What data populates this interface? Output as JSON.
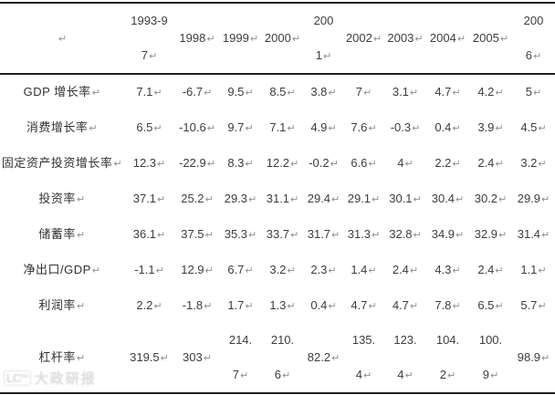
{
  "document": {
    "background": "#ffffff",
    "text_color": "#3d3d3d",
    "border_color": "#1f1f1f",
    "return_mark": "↵",
    "return_mark_color": "#8f8f8f"
  },
  "table": {
    "description": "Chinese macroeconomic indicators by period",
    "columns": [
      "",
      "1993-97",
      "1998",
      "1999",
      "2000",
      "2001",
      "2002",
      "2003",
      "2004",
      "2005",
      "2006"
    ],
    "header": [
      {
        "lines": [
          {
            "t": "",
            "m": true
          }
        ]
      },
      {
        "lines": [
          {
            "t": "1993-9",
            "m": false
          },
          {
            "t": "7",
            "m": true
          }
        ]
      },
      {
        "lines": [
          {
            "t": "1998",
            "m": true
          }
        ]
      },
      {
        "lines": [
          {
            "t": "1999",
            "m": true
          }
        ]
      },
      {
        "lines": [
          {
            "t": "2000",
            "m": true
          }
        ]
      },
      {
        "lines": [
          {
            "t": "200",
            "m": false
          },
          {
            "t": "1",
            "m": true
          }
        ]
      },
      {
        "lines": [
          {
            "t": "2002",
            "m": true
          }
        ]
      },
      {
        "lines": [
          {
            "t": "2003",
            "m": true
          }
        ]
      },
      {
        "lines": [
          {
            "t": "2004",
            "m": true
          }
        ]
      },
      {
        "lines": [
          {
            "t": "2005",
            "m": true
          }
        ]
      },
      {
        "lines": [
          {
            "t": "200",
            "m": false
          },
          {
            "t": "6",
            "m": true
          }
        ]
      }
    ],
    "rows": [
      {
        "name": "gdp-growth-rate",
        "values": [
          7.1,
          -6.7,
          9.5,
          8.5,
          3.8,
          7,
          3.1,
          4.7,
          4.2,
          5
        ],
        "cells": [
          {
            "lines": [
              {
                "t": "GDP 增长率",
                "m": true
              }
            ]
          },
          {
            "lines": [
              {
                "t": "7.1",
                "m": true
              }
            ]
          },
          {
            "lines": [
              {
                "t": "-6.7",
                "m": true
              }
            ]
          },
          {
            "lines": [
              {
                "t": "9.5",
                "m": true
              }
            ]
          },
          {
            "lines": [
              {
                "t": "8.5",
                "m": true
              }
            ]
          },
          {
            "lines": [
              {
                "t": "3.8",
                "m": true
              }
            ]
          },
          {
            "lines": [
              {
                "t": "7",
                "m": true
              }
            ]
          },
          {
            "lines": [
              {
                "t": "3.1",
                "m": true
              }
            ]
          },
          {
            "lines": [
              {
                "t": "4.7",
                "m": true
              }
            ]
          },
          {
            "lines": [
              {
                "t": "4.2",
                "m": true
              }
            ]
          },
          {
            "lines": [
              {
                "t": "5",
                "m": true
              }
            ]
          }
        ]
      },
      {
        "name": "consumption-growth-rate",
        "values": [
          6.5,
          -10.6,
          9.7,
          7.1,
          4.9,
          7.6,
          -0.3,
          0.4,
          3.9,
          4.5
        ],
        "cells": [
          {
            "lines": [
              {
                "t": "消费增长率",
                "m": true
              }
            ]
          },
          {
            "lines": [
              {
                "t": "6.5",
                "m": true
              }
            ]
          },
          {
            "lines": [
              {
                "t": "-10.6",
                "m": true
              }
            ]
          },
          {
            "lines": [
              {
                "t": "9.7",
                "m": true
              }
            ]
          },
          {
            "lines": [
              {
                "t": "7.1",
                "m": true
              }
            ]
          },
          {
            "lines": [
              {
                "t": "4.9",
                "m": true
              }
            ]
          },
          {
            "lines": [
              {
                "t": "7.6",
                "m": true
              }
            ]
          },
          {
            "lines": [
              {
                "t": "-0.3",
                "m": true
              }
            ]
          },
          {
            "lines": [
              {
                "t": "0.4",
                "m": true
              }
            ]
          },
          {
            "lines": [
              {
                "t": "3.9",
                "m": true
              }
            ]
          },
          {
            "lines": [
              {
                "t": "4.5",
                "m": true
              }
            ]
          }
        ]
      },
      {
        "name": "fixed-asset-investment-growth-rate",
        "values": [
          12.3,
          -22.9,
          8.3,
          12.2,
          -0.2,
          6.6,
          4,
          2.2,
          2.4,
          3.2
        ],
        "cells": [
          {
            "lines": [
              {
                "t": "固定资产投资增长率",
                "m": true
              }
            ]
          },
          {
            "lines": [
              {
                "t": "12.3",
                "m": true
              }
            ]
          },
          {
            "lines": [
              {
                "t": "-22.9",
                "m": true
              }
            ]
          },
          {
            "lines": [
              {
                "t": "8.3",
                "m": true
              }
            ]
          },
          {
            "lines": [
              {
                "t": "12.2",
                "m": true
              }
            ]
          },
          {
            "lines": [
              {
                "t": "-0.2",
                "m": true
              }
            ]
          },
          {
            "lines": [
              {
                "t": "6.6",
                "m": true
              }
            ]
          },
          {
            "lines": [
              {
                "t": "4",
                "m": true
              }
            ]
          },
          {
            "lines": [
              {
                "t": "2.2",
                "m": true
              }
            ]
          },
          {
            "lines": [
              {
                "t": "2.4",
                "m": true
              }
            ]
          },
          {
            "lines": [
              {
                "t": "3.2",
                "m": true
              }
            ]
          }
        ]
      },
      {
        "name": "investment-rate",
        "values": [
          37.1,
          25.2,
          29.3,
          31.1,
          29.4,
          29.1,
          30.1,
          30.4,
          30.2,
          29.9
        ],
        "cells": [
          {
            "lines": [
              {
                "t": "投资率",
                "m": true
              }
            ]
          },
          {
            "lines": [
              {
                "t": "37.1",
                "m": true
              }
            ]
          },
          {
            "lines": [
              {
                "t": "25.2",
                "m": true
              }
            ]
          },
          {
            "lines": [
              {
                "t": "29.3",
                "m": true
              }
            ]
          },
          {
            "lines": [
              {
                "t": "31.1",
                "m": true
              }
            ]
          },
          {
            "lines": [
              {
                "t": "29.4",
                "m": true
              }
            ]
          },
          {
            "lines": [
              {
                "t": "29.1",
                "m": true
              }
            ]
          },
          {
            "lines": [
              {
                "t": "30.1",
                "m": true
              }
            ]
          },
          {
            "lines": [
              {
                "t": "30.4",
                "m": true
              }
            ]
          },
          {
            "lines": [
              {
                "t": "30.2",
                "m": true
              }
            ]
          },
          {
            "lines": [
              {
                "t": "29.9",
                "m": true
              }
            ]
          }
        ]
      },
      {
        "name": "savings-rate",
        "values": [
          36.1,
          37.5,
          35.3,
          33.7,
          31.7,
          31.3,
          32.8,
          34.9,
          32.9,
          31.4
        ],
        "cells": [
          {
            "lines": [
              {
                "t": "储蓄率",
                "m": true
              }
            ]
          },
          {
            "lines": [
              {
                "t": "36.1",
                "m": true
              }
            ]
          },
          {
            "lines": [
              {
                "t": "37.5",
                "m": true
              }
            ]
          },
          {
            "lines": [
              {
                "t": "35.3",
                "m": true
              }
            ]
          },
          {
            "lines": [
              {
                "t": "33.7",
                "m": true
              }
            ]
          },
          {
            "lines": [
              {
                "t": "31.7",
                "m": true
              }
            ]
          },
          {
            "lines": [
              {
                "t": "31.3",
                "m": true
              }
            ]
          },
          {
            "lines": [
              {
                "t": "32.8",
                "m": true
              }
            ]
          },
          {
            "lines": [
              {
                "t": "34.9",
                "m": true
              }
            ]
          },
          {
            "lines": [
              {
                "t": "32.9",
                "m": true
              }
            ]
          },
          {
            "lines": [
              {
                "t": "31.4",
                "m": true
              }
            ]
          }
        ]
      },
      {
        "name": "net-exports-to-gdp",
        "values": [
          -1.1,
          12.9,
          6.7,
          3.2,
          2.3,
          1.4,
          2.4,
          4.3,
          2.4,
          1.1
        ],
        "cells": [
          {
            "lines": [
              {
                "t": "净出口/GDP",
                "m": true
              }
            ]
          },
          {
            "lines": [
              {
                "t": "-1.1",
                "m": true
              }
            ]
          },
          {
            "lines": [
              {
                "t": "12.9",
                "m": true
              }
            ]
          },
          {
            "lines": [
              {
                "t": "6.7",
                "m": true
              }
            ]
          },
          {
            "lines": [
              {
                "t": "3.2",
                "m": true
              }
            ]
          },
          {
            "lines": [
              {
                "t": "2.3",
                "m": true
              }
            ]
          },
          {
            "lines": [
              {
                "t": "1.4",
                "m": true
              }
            ]
          },
          {
            "lines": [
              {
                "t": "2.4",
                "m": true
              }
            ]
          },
          {
            "lines": [
              {
                "t": "4.3",
                "m": true
              }
            ]
          },
          {
            "lines": [
              {
                "t": "2.4",
                "m": true
              }
            ]
          },
          {
            "lines": [
              {
                "t": "1.1",
                "m": true
              }
            ]
          }
        ]
      },
      {
        "name": "profit-rate",
        "values": [
          2.2,
          -1.8,
          1.7,
          1.3,
          0.4,
          4.7,
          4.7,
          7.8,
          6.5,
          5.7
        ],
        "cells": [
          {
            "lines": [
              {
                "t": "利润率",
                "m": true
              }
            ]
          },
          {
            "lines": [
              {
                "t": "2.2",
                "m": true
              }
            ]
          },
          {
            "lines": [
              {
                "t": "-1.8",
                "m": true
              }
            ]
          },
          {
            "lines": [
              {
                "t": "1.7",
                "m": true
              }
            ]
          },
          {
            "lines": [
              {
                "t": "1.3",
                "m": true
              }
            ]
          },
          {
            "lines": [
              {
                "t": "0.4",
                "m": true
              }
            ]
          },
          {
            "lines": [
              {
                "t": "4.7",
                "m": true
              }
            ]
          },
          {
            "lines": [
              {
                "t": "4.7",
                "m": true
              }
            ]
          },
          {
            "lines": [
              {
                "t": "7.8",
                "m": true
              }
            ]
          },
          {
            "lines": [
              {
                "t": "6.5",
                "m": true
              }
            ]
          },
          {
            "lines": [
              {
                "t": "5.7",
                "m": true
              }
            ]
          }
        ]
      },
      {
        "name": "leverage-ratio",
        "values": [
          319.5,
          303,
          214.7,
          210.6,
          82.2,
          135.4,
          123.4,
          104.2,
          100.9,
          98.9
        ],
        "cells": [
          {
            "lines": [
              {
                "t": "杠杆率",
                "m": true
              }
            ]
          },
          {
            "lines": [
              {
                "t": "319.5",
                "m": true
              }
            ]
          },
          {
            "lines": [
              {
                "t": "303",
                "m": true
              }
            ]
          },
          {
            "lines": [
              {
                "t": "214.",
                "m": false
              },
              {
                "t": "7",
                "m": true
              }
            ]
          },
          {
            "lines": [
              {
                "t": "210.",
                "m": false
              },
              {
                "t": "6",
                "m": true
              }
            ]
          },
          {
            "lines": [
              {
                "t": "82.2",
                "m": true
              }
            ]
          },
          {
            "lines": [
              {
                "t": "135.",
                "m": false
              },
              {
                "t": "4",
                "m": true
              }
            ]
          },
          {
            "lines": [
              {
                "t": "123.",
                "m": false
              },
              {
                "t": "4",
                "m": true
              }
            ]
          },
          {
            "lines": [
              {
                "t": "104.",
                "m": false
              },
              {
                "t": "2",
                "m": true
              }
            ]
          },
          {
            "lines": [
              {
                "t": "100.",
                "m": false
              },
              {
                "t": "9",
                "m": true
              }
            ]
          },
          {
            "lines": [
              {
                "t": "98.9",
                "m": true
              }
            ]
          }
        ]
      }
    ]
  },
  "watermark": {
    "logo": "LC°°",
    "text": "大政研报"
  }
}
